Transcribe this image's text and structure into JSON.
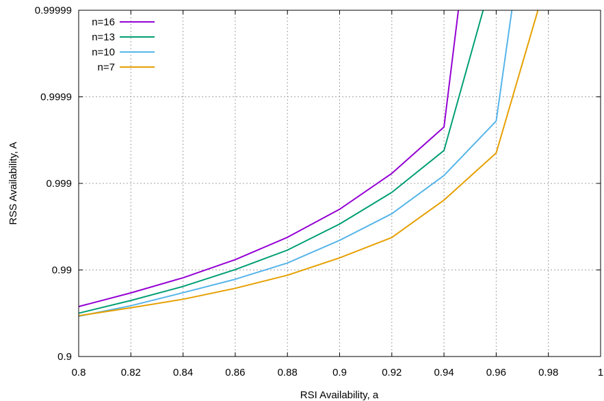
{
  "chart_data": {
    "type": "line",
    "xlabel": "RSI Availability, a",
    "ylabel": "RSS Availability, A",
    "xlim": [
      0.8,
      1.0
    ],
    "ylim": [
      0.9,
      0.99999
    ],
    "yscale": "log-unavailability",
    "grid": true,
    "legend_position": "top-left",
    "x_ticks": [
      "0.8",
      "0.82",
      "0.84",
      "0.86",
      "0.88",
      "0.9",
      "0.92",
      "0.94",
      "0.96",
      "0.98",
      "1"
    ],
    "y_ticks": [
      "0.9",
      "0.99",
      "0.999",
      "0.9999",
      "0.99999"
    ],
    "series": [
      {
        "name": "n=16",
        "color": "#9400d3",
        "x": [
          0.8,
          0.82,
          0.84,
          0.86,
          0.88,
          0.9,
          0.92,
          0.94,
          0.9455
        ],
        "y": [
          0.9735,
          0.9816,
          0.9877,
          0.9924,
          0.9958,
          0.99801,
          0.999233,
          0.999777,
          0.99999
        ]
      },
      {
        "name": "n=13",
        "color": "#009e73",
        "x": [
          0.8,
          0.82,
          0.84,
          0.86,
          0.88,
          0.9,
          0.92,
          0.94,
          0.955
        ],
        "y": [
          0.9684,
          0.9775,
          0.9845,
          0.9901,
          0.9941,
          0.99705,
          0.99873,
          0.999583,
          0.99999
        ]
      },
      {
        "name": "n=10",
        "color": "#56b4e9",
        "x": [
          0.8,
          0.82,
          0.84,
          0.86,
          0.88,
          0.9,
          0.92,
          0.94,
          0.96,
          0.966
        ],
        "y": [
          0.9657,
          0.9741,
          0.9817,
          0.9872,
          0.9917,
          0.99545,
          0.99776,
          0.99919,
          0.99981,
          0.99999
        ]
      },
      {
        "name": "n=7",
        "color": "#e69f00",
        "x": [
          0.8,
          0.82,
          0.84,
          0.86,
          0.88,
          0.9,
          0.92,
          0.94,
          0.96,
          0.976
        ],
        "y": [
          0.9662,
          0.9727,
          0.9782,
          0.9837,
          0.9885,
          0.99275,
          0.99578,
          0.99844,
          0.999555,
          0.99999
        ]
      }
    ]
  }
}
